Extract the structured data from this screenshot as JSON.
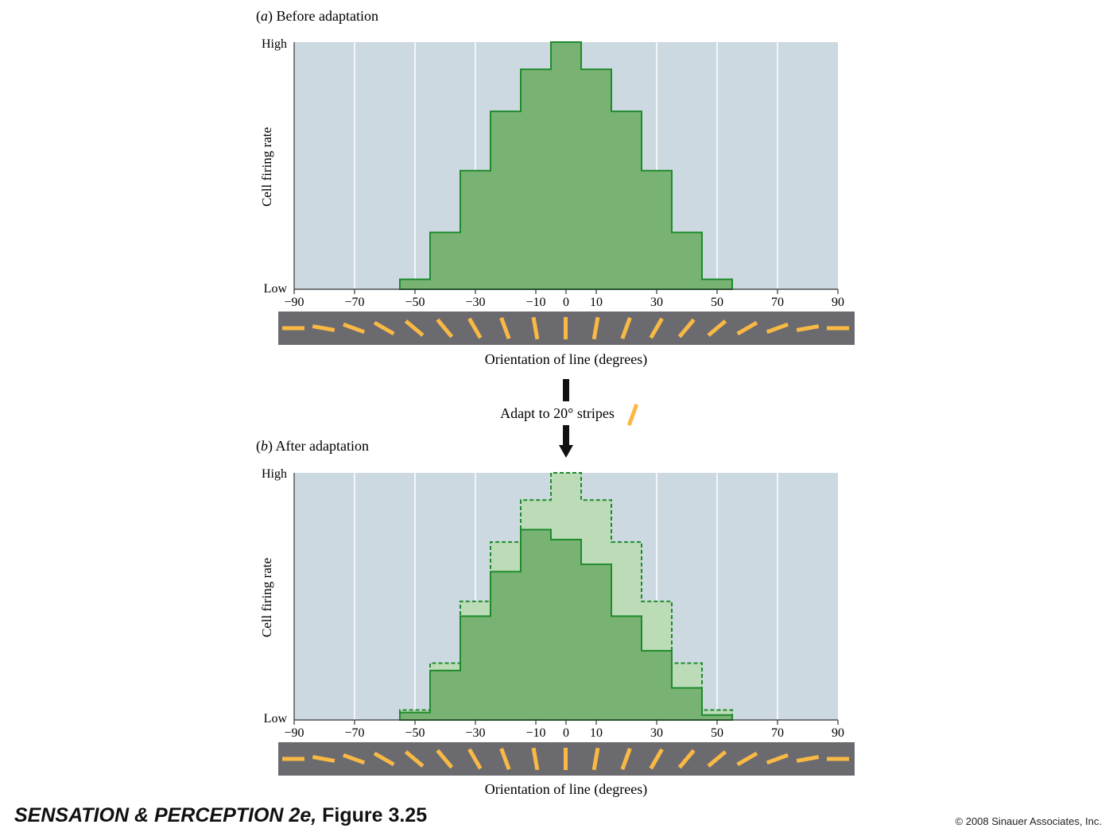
{
  "chart_data": [
    {
      "type": "bar",
      "panel_letter": "a",
      "title": "Before adaptation",
      "ylabel": "Cell firing rate",
      "y_tick_labels": [
        "Low",
        "High"
      ],
      "xlabel": "Orientation of line (degrees)",
      "xlim": [
        -90,
        90
      ],
      "x_ticks": [
        -90,
        -70,
        -50,
        -30,
        -10,
        0,
        10,
        30,
        50,
        70,
        90
      ],
      "ylim": [
        0,
        1
      ],
      "grid": true,
      "bin_edges": [
        -55,
        -45,
        -35,
        -25,
        -15,
        -5,
        5,
        15,
        25,
        35,
        45,
        55
      ],
      "values": [
        0.04,
        0.23,
        0.48,
        0.72,
        0.89,
        1.0,
        0.89,
        0.72,
        0.48,
        0.23,
        0.04
      ],
      "colors": {
        "bars": "#79b373",
        "edge": "#1e8a2c",
        "background": "#ccd9e0"
      }
    },
    {
      "type": "bar",
      "panel_letter": "b",
      "title": "After adaptation",
      "ylabel": "Cell firing rate",
      "y_tick_labels": [
        "Low",
        "High"
      ],
      "xlabel": "Orientation of line (degrees)",
      "xlim": [
        -90,
        90
      ],
      "x_ticks": [
        -90,
        -70,
        -50,
        -30,
        -10,
        0,
        10,
        30,
        50,
        70,
        90
      ],
      "ylim": [
        0,
        1
      ],
      "grid": true,
      "bin_edges": [
        -55,
        -45,
        -35,
        -25,
        -15,
        -5,
        5,
        15,
        25,
        35,
        45,
        55
      ],
      "series": [
        {
          "style": "dashed",
          "values": [
            0.04,
            0.23,
            0.48,
            0.72,
            0.89,
            1.0,
            0.89,
            0.72,
            0.48,
            0.23,
            0.04
          ]
        },
        {
          "style": "solid",
          "values": [
            0.03,
            0.2,
            0.42,
            0.6,
            0.77,
            0.73,
            0.63,
            0.42,
            0.28,
            0.13,
            0.02
          ]
        }
      ],
      "colors": {
        "bars": "#79b373",
        "previous": "#bcdcb8",
        "edge": "#1e8a2c",
        "background": "#ccd9e0"
      }
    }
  ],
  "adaptation": {
    "label": "Adapt to 20° stripes",
    "orientation_deg": 20
  },
  "orientation_strip": {
    "orientations_deg": [
      -90,
      -80,
      -70,
      -60,
      -50,
      -40,
      -30,
      -20,
      -10,
      0,
      10,
      20,
      30,
      40,
      50,
      60,
      70,
      80,
      90
    ]
  },
  "colors": {
    "strip_bg": "#6b6b6f",
    "stripe": "#f9b944",
    "arrow": "#111111"
  },
  "footer": {
    "book_title": "SENSATION & PERCEPTION 2e,",
    "figure": "Figure 3.25",
    "copyright": "© 2008 Sinauer Associates, Inc."
  }
}
